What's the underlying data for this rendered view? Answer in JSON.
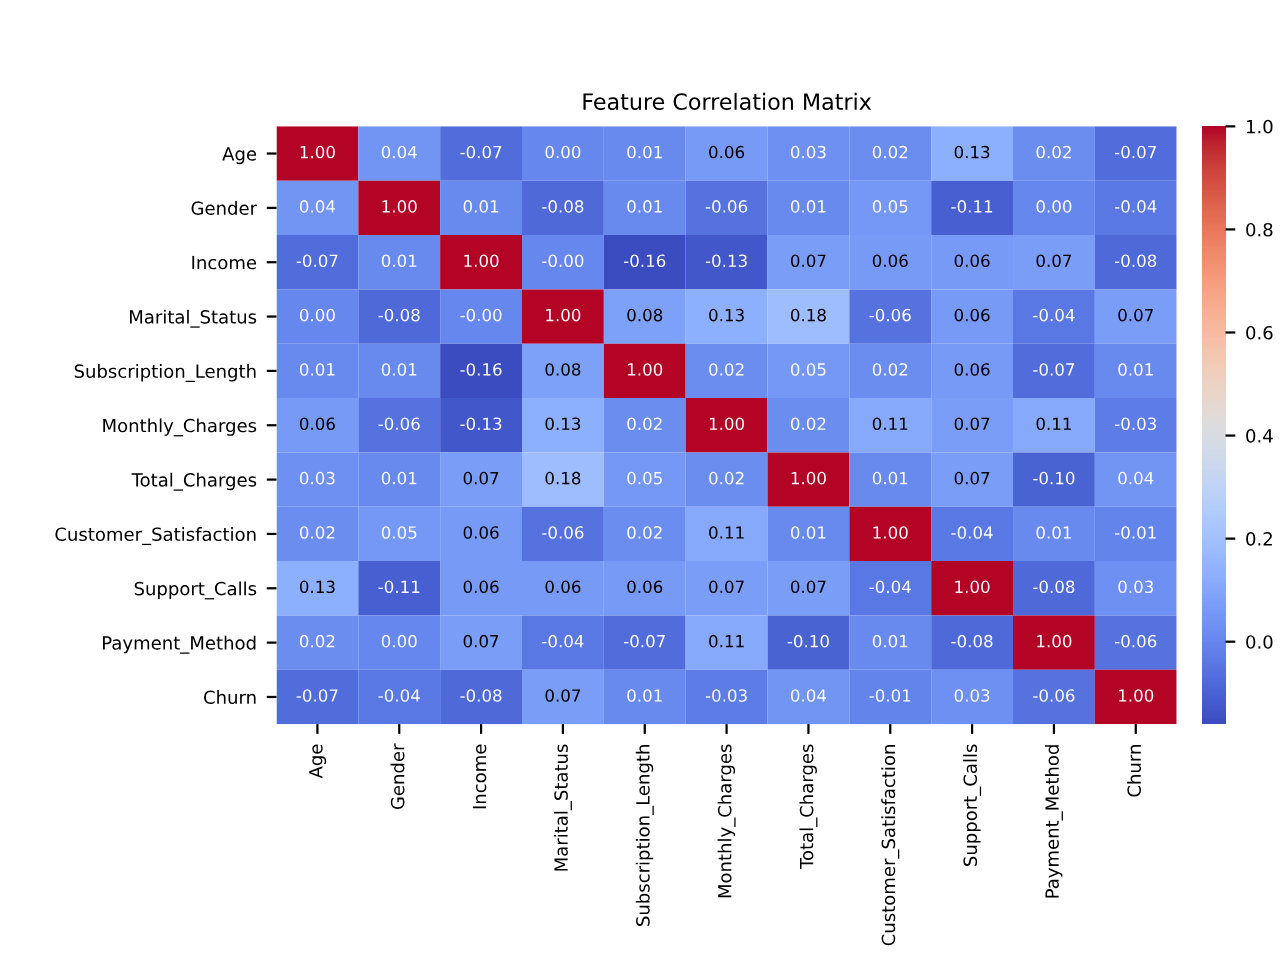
{
  "chart_data": {
    "type": "heatmap",
    "title": "Feature Correlation Matrix",
    "categories": [
      "Age",
      "Gender",
      "Income",
      "Marital_Status",
      "Subscription_Length",
      "Monthly_Charges",
      "Total_Charges",
      "Customer_Satisfaction",
      "Support_Calls",
      "Payment_Method",
      "Churn"
    ],
    "y_categories": [
      "Age",
      "Gender",
      "Income",
      "Marital_Status",
      "Subscription_Length",
      "Monthly_Charges",
      "Total_Charges",
      "Customer_Satisfaction",
      "Support_Calls",
      "Payment_Method",
      "Churn"
    ],
    "cells": [
      [
        1.0,
        0.04,
        -0.07,
        0.0,
        0.01,
        0.06,
        0.03,
        0.02,
        0.13,
        0.02,
        -0.07
      ],
      [
        0.04,
        1.0,
        0.01,
        -0.08,
        0.01,
        -0.06,
        0.01,
        0.05,
        -0.11,
        0.0,
        -0.04
      ],
      [
        -0.07,
        0.01,
        1.0,
        -0.0,
        -0.16,
        -0.13,
        0.07,
        0.06,
        0.06,
        0.07,
        -0.08
      ],
      [
        0.0,
        -0.08,
        -0.0,
        1.0,
        0.08,
        0.13,
        0.18,
        -0.06,
        0.06,
        -0.04,
        0.07
      ],
      [
        0.01,
        0.01,
        -0.16,
        0.08,
        1.0,
        0.02,
        0.05,
        0.02,
        0.06,
        -0.07,
        0.01
      ],
      [
        0.06,
        -0.06,
        -0.13,
        0.13,
        0.02,
        1.0,
        0.02,
        0.11,
        0.07,
        0.11,
        -0.03
      ],
      [
        0.03,
        0.01,
        0.07,
        0.18,
        0.05,
        0.02,
        1.0,
        0.01,
        0.07,
        -0.1,
        0.04
      ],
      [
        0.02,
        0.05,
        0.06,
        -0.06,
        0.02,
        0.11,
        0.01,
        1.0,
        -0.04,
        0.01,
        -0.01
      ],
      [
        0.13,
        -0.11,
        0.06,
        0.06,
        0.06,
        0.07,
        0.07,
        -0.04,
        1.0,
        -0.08,
        0.03
      ],
      [
        0.02,
        0.0,
        0.07,
        -0.04,
        -0.07,
        0.11,
        -0.1,
        0.01,
        -0.08,
        1.0,
        -0.06
      ],
      [
        -0.07,
        -0.04,
        -0.08,
        0.07,
        0.01,
        -0.03,
        0.04,
        -0.01,
        0.03,
        -0.06,
        1.0
      ]
    ],
    "cell_labels": [
      [
        "1.00",
        "0.04",
        "-0.07",
        "0.00",
        "0.01",
        "0.06",
        "0.03",
        "0.02",
        "0.13",
        "0.02",
        "-0.07"
      ],
      [
        "0.04",
        "1.00",
        "0.01",
        "-0.08",
        "0.01",
        "-0.06",
        "0.01",
        "0.05",
        "-0.11",
        "0.00",
        "-0.04"
      ],
      [
        "-0.07",
        "0.01",
        "1.00",
        "-0.00",
        "-0.16",
        "-0.13",
        "0.07",
        "0.06",
        "0.06",
        "0.07",
        "-0.08"
      ],
      [
        "0.00",
        "-0.08",
        "-0.00",
        "1.00",
        "0.08",
        "0.13",
        "0.18",
        "-0.06",
        "0.06",
        "-0.04",
        "0.07"
      ],
      [
        "0.01",
        "0.01",
        "-0.16",
        "0.08",
        "1.00",
        "0.02",
        "0.05",
        "0.02",
        "0.06",
        "-0.07",
        "0.01"
      ],
      [
        "0.06",
        "-0.06",
        "-0.13",
        "0.13",
        "0.02",
        "1.00",
        "0.02",
        "0.11",
        "0.07",
        "0.11",
        "-0.03"
      ],
      [
        "0.03",
        "0.01",
        "0.07",
        "0.18",
        "0.05",
        "0.02",
        "1.00",
        "0.01",
        "0.07",
        "-0.10",
        "0.04"
      ],
      [
        "0.02",
        "0.05",
        "0.06",
        "-0.06",
        "0.02",
        "0.11",
        "0.01",
        "1.00",
        "-0.04",
        "0.01",
        "-0.01"
      ],
      [
        "0.13",
        "-0.11",
        "0.06",
        "0.06",
        "0.06",
        "0.07",
        "0.07",
        "-0.04",
        "1.00",
        "-0.08",
        "0.03"
      ],
      [
        "0.02",
        "0.00",
        "0.07",
        "-0.04",
        "-0.07",
        "0.11",
        "-0.10",
        "0.01",
        "-0.08",
        "1.00",
        "-0.06"
      ],
      [
        "-0.07",
        "-0.04",
        "-0.08",
        "0.07",
        "0.01",
        "-0.03",
        "0.04",
        "-0.01",
        "0.03",
        "-0.06",
        "1.00"
      ]
    ],
    "clim": [
      -0.16,
      1.0
    ],
    "cticks": [
      {
        "value": 0.0,
        "label": "0.0"
      },
      {
        "value": 0.2,
        "label": "0.2"
      },
      {
        "value": 0.4,
        "label": "0.4"
      },
      {
        "value": 0.6,
        "label": "0.6"
      },
      {
        "value": 0.8,
        "label": "0.8"
      },
      {
        "value": 1.0,
        "label": "1.0"
      }
    ]
  }
}
